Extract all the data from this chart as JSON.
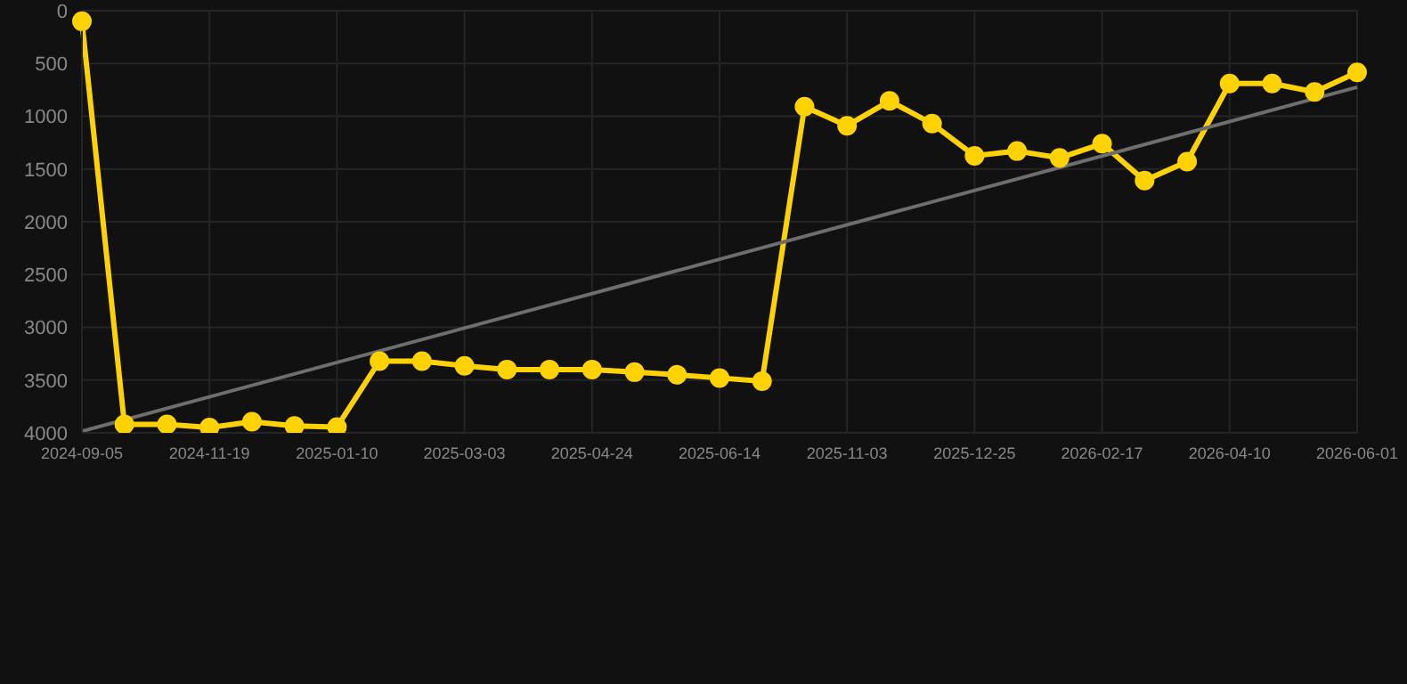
{
  "chart_data": {
    "type": "line",
    "categories": [
      "2024-09-05",
      null,
      null,
      "2024-11-19",
      null,
      null,
      "2025-01-10",
      null,
      null,
      "2025-03-03",
      null,
      null,
      "2025-04-24",
      null,
      null,
      "2025-06-14",
      null,
      null,
      "2025-11-03",
      null,
      null,
      "2025-12-25",
      null,
      null,
      "2026-02-17",
      null,
      null,
      "2026-04-10",
      null,
      null,
      "2026-06-01"
    ],
    "series": [
      {
        "color": "#ffd200",
        "marker": "circle",
        "values": [
          100,
          3920,
          3920,
          3950,
          3895,
          3935,
          3945,
          3320,
          3320,
          3365,
          3400,
          3400,
          3400,
          3425,
          3450,
          3480,
          3510,
          910,
          1090,
          855,
          1070,
          1375,
          1330,
          1395,
          1260,
          1610,
          1430,
          690,
          690,
          770,
          585
        ]
      },
      {
        "type": "line",
        "color": "#6e6e6e",
        "marker": "none",
        "values": [
          3985,
          null,
          null,
          null,
          null,
          null,
          null,
          null,
          null,
          null,
          null,
          null,
          null,
          null,
          null,
          null,
          null,
          null,
          null,
          null,
          null,
          null,
          null,
          null,
          null,
          null,
          null,
          null,
          null,
          null,
          725
        ]
      }
    ],
    "ylim": [
      4000,
      0
    ],
    "yticks": [
      0,
      500,
      1000,
      1500,
      2000,
      2500,
      3000,
      3500,
      4000
    ],
    "grid": true
  }
}
